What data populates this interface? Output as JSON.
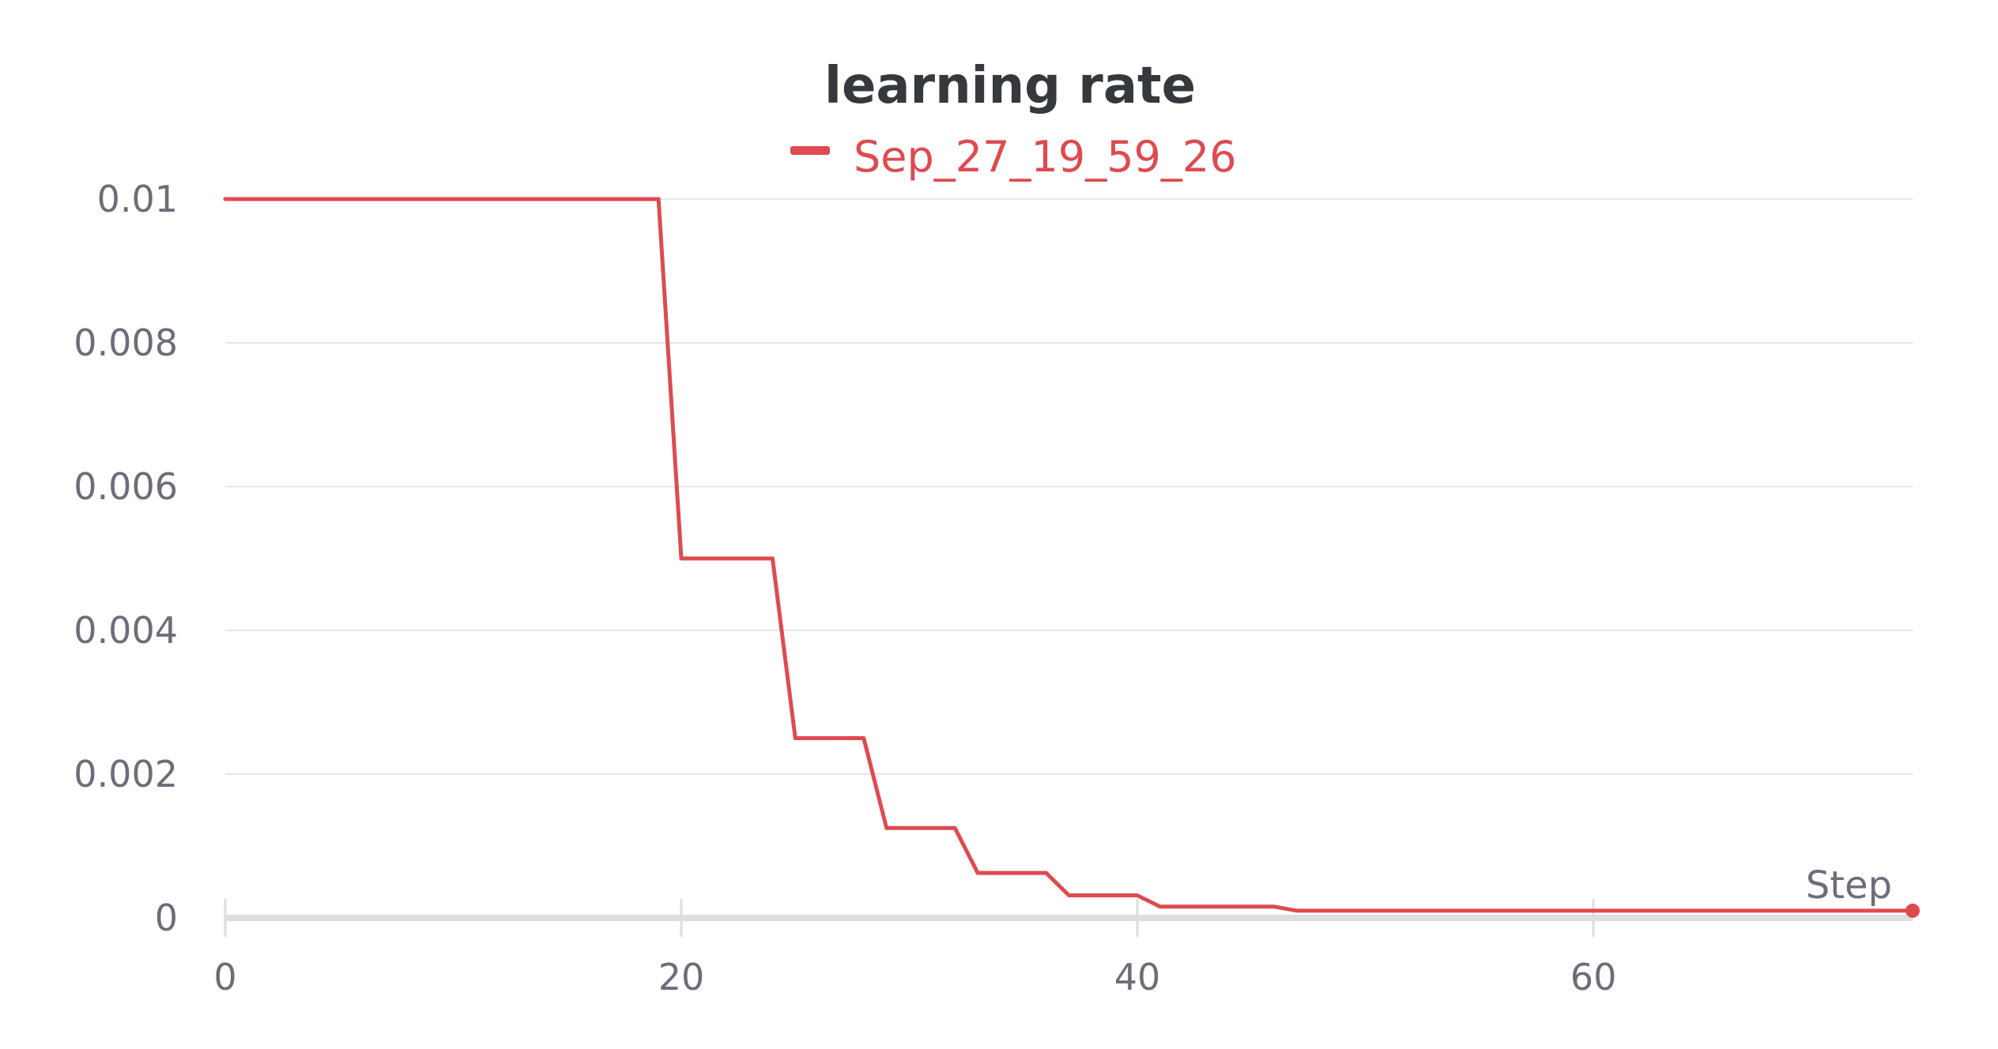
{
  "colors": {
    "series": "#dd4b50",
    "title": "#35383d",
    "tick": "#6b6e78",
    "grid": "#e6e6e8"
  },
  "chart_data": {
    "type": "line",
    "title": "learning rate",
    "xlabel": "Step",
    "ylabel": "",
    "xlim": [
      0,
      74
    ],
    "ylim": [
      0,
      0.01
    ],
    "x_ticks": [
      "0",
      "20",
      "40",
      "60"
    ],
    "y_ticks": [
      "0",
      "0.002",
      "0.004",
      "0.006",
      "0.008",
      "0.01"
    ],
    "grid": true,
    "legend_position": "top-center",
    "series": [
      {
        "name": "Sep_27_19_59_26",
        "color": "#dd4b50",
        "x": [
          0,
          19,
          20,
          24,
          25,
          28,
          29,
          32,
          33,
          36,
          37,
          40,
          41,
          46,
          47,
          74
        ],
        "y": [
          0.01,
          0.01,
          0.005,
          0.005,
          0.0025,
          0.0025,
          0.00125,
          0.00125,
          0.000625,
          0.000625,
          0.0003125,
          0.0003125,
          0.00015625,
          0.00015625,
          0.0001,
          0.0001
        ]
      }
    ]
  }
}
